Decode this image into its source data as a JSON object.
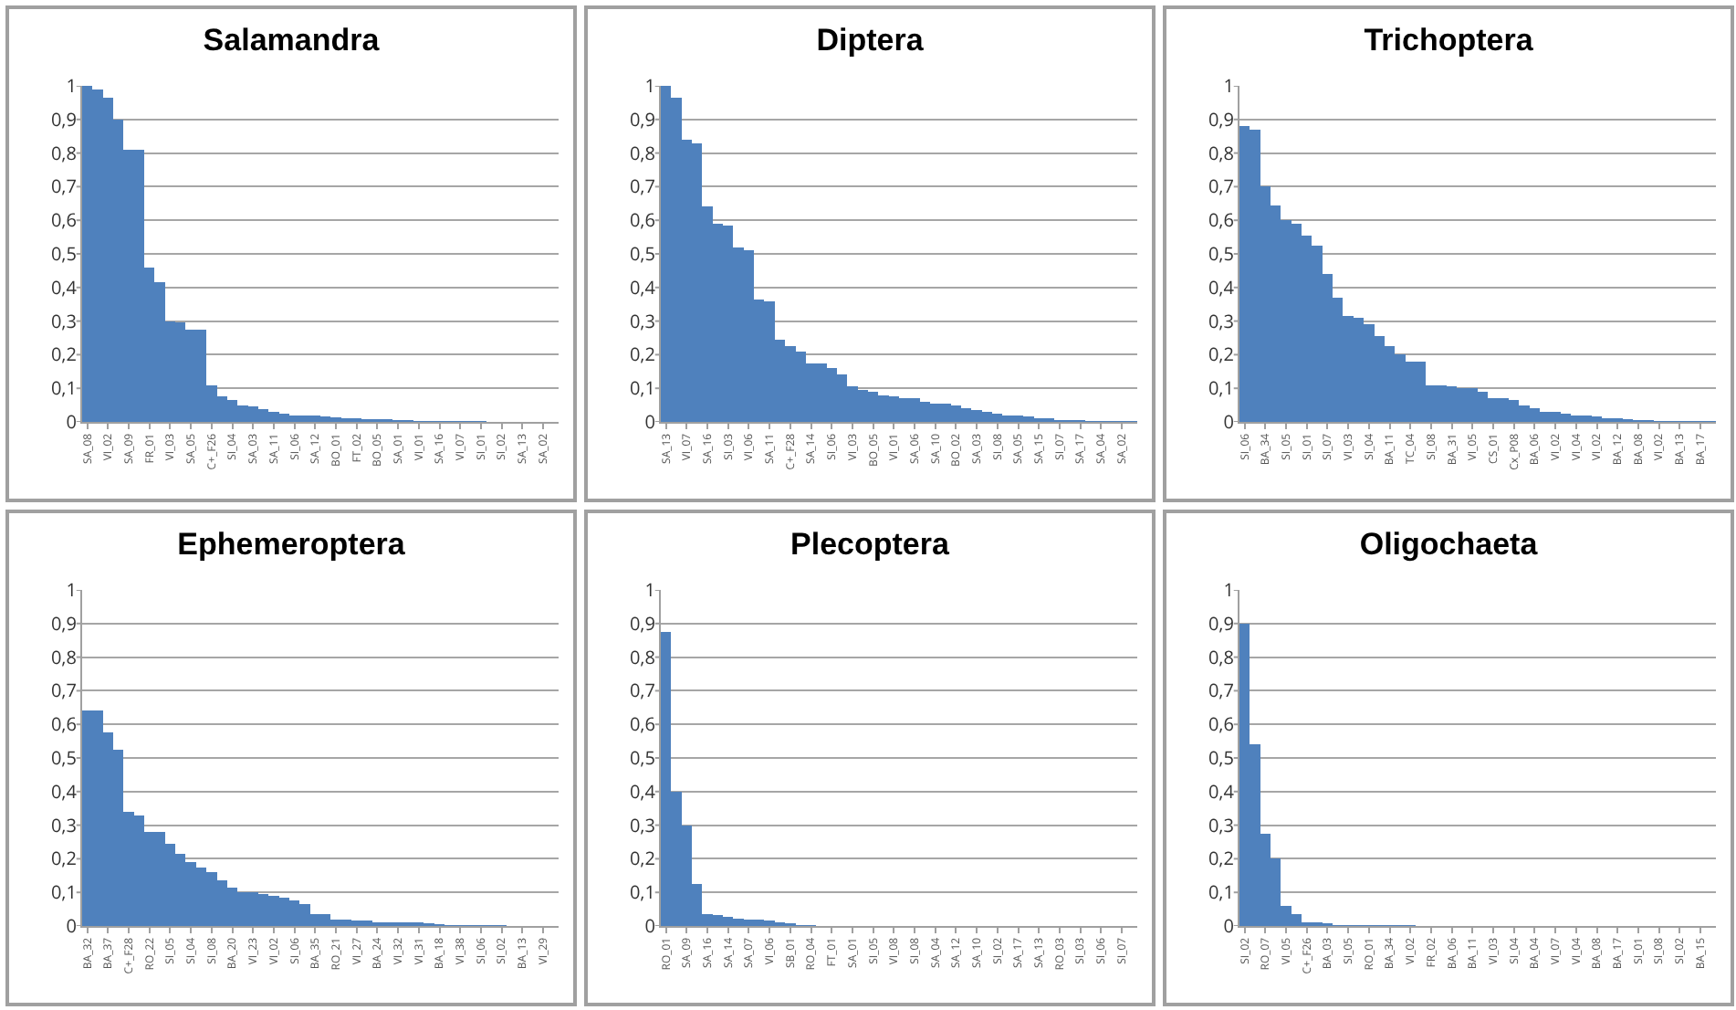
{
  "chart_data": [
    {
      "type": "bar",
      "title": "Salamandra",
      "color": "#4f81bd",
      "grid": "y",
      "ylim": [
        0,
        1
      ],
      "yticks": [
        {
          "value": 0,
          "label": "0"
        },
        {
          "value": 0.1,
          "label": "0,1"
        },
        {
          "value": 0.2,
          "label": "0,2"
        },
        {
          "value": 0.3,
          "label": "0,3"
        },
        {
          "value": 0.4,
          "label": "0,4"
        },
        {
          "value": 0.5,
          "label": "0,5"
        },
        {
          "value": 0.6,
          "label": "0,6"
        },
        {
          "value": 0.7,
          "label": "0,7"
        },
        {
          "value": 0.8,
          "label": "0,8"
        },
        {
          "value": 0.9,
          "label": "0,9"
        },
        {
          "value": 1,
          "label": "1"
        }
      ],
      "categories": [
        "SA_08",
        null,
        "VI_02",
        null,
        "SA_09",
        null,
        "FR_01",
        null,
        "VI_03",
        null,
        "SA_05",
        null,
        "C+_F26",
        null,
        "SI_04",
        null,
        "SA_03",
        null,
        "SA_11",
        null,
        "SI_06",
        null,
        "SA_12",
        null,
        "BO_01",
        null,
        "FT_02",
        null,
        "BO_05",
        null,
        "SA_01",
        null,
        "VI_01",
        null,
        "SA_16",
        null,
        "VI_07",
        null,
        "SI_01",
        null,
        "SI_02",
        null,
        "SA_13",
        null,
        "SA_02",
        null
      ],
      "values": [
        1,
        0.99,
        0.965,
        0.9,
        0.81,
        0.81,
        0.46,
        0.415,
        0.3,
        0.295,
        0.275,
        0.275,
        0.11,
        0.075,
        0.065,
        0.05,
        0.045,
        0.038,
        0.03,
        0.025,
        0.02,
        0.02,
        0.018,
        0.016,
        0.014,
        0.012,
        0.01,
        0.009,
        0.008,
        0.007,
        0.006,
        0.005,
        0.004,
        0.004,
        0.003,
        0.003,
        0.002,
        0.002,
        0.002,
        0.001,
        0.001,
        0.001,
        0.001,
        0.001,
        0.001,
        0.001
      ]
    },
    {
      "type": "bar",
      "title": "Diptera",
      "color": "#4f81bd",
      "grid": "y",
      "ylim": [
        0,
        1
      ],
      "yticks": [
        {
          "value": 0,
          "label": "0"
        },
        {
          "value": 0.1,
          "label": "0,1"
        },
        {
          "value": 0.2,
          "label": "0,2"
        },
        {
          "value": 0.3,
          "label": "0,3"
        },
        {
          "value": 0.4,
          "label": "0,4"
        },
        {
          "value": 0.5,
          "label": "0,5"
        },
        {
          "value": 0.6,
          "label": "0,6"
        },
        {
          "value": 0.7,
          "label": "0,7"
        },
        {
          "value": 0.8,
          "label": "0,8"
        },
        {
          "value": 0.9,
          "label": "0,9"
        },
        {
          "value": 1,
          "label": "1"
        }
      ],
      "categories": [
        "SA_13",
        null,
        "VI_07",
        null,
        "SA_16",
        null,
        "SI_03",
        null,
        "VI_06",
        null,
        "SA_11",
        null,
        "C+_F28",
        null,
        "SA_14",
        null,
        "SI_06",
        null,
        "VI_03",
        null,
        "BO_05",
        null,
        "VI_01",
        null,
        "SA_06",
        null,
        "SA_10",
        null,
        "BO_02",
        null,
        "SA_03",
        null,
        "SI_08",
        null,
        "SA_05",
        null,
        "SA_15",
        null,
        "SI_07",
        null,
        "SA_17",
        null,
        "SA_04",
        null,
        "SA_02",
        null
      ],
      "values": [
        1,
        0.965,
        0.84,
        0.83,
        0.64,
        0.59,
        0.585,
        0.52,
        0.51,
        0.365,
        0.36,
        0.245,
        0.225,
        0.21,
        0.175,
        0.175,
        0.16,
        0.14,
        0.105,
        0.095,
        0.09,
        0.08,
        0.075,
        0.07,
        0.07,
        0.06,
        0.055,
        0.055,
        0.05,
        0.04,
        0.035,
        0.03,
        0.025,
        0.02,
        0.02,
        0.015,
        0.01,
        0.01,
        0.005,
        0.005,
        0.005,
        0.003,
        0.003,
        0.002,
        0.002,
        0.002
      ]
    },
    {
      "type": "bar",
      "title": "Trichoptera",
      "color": "#4f81bd",
      "grid": "y",
      "ylim": [
        0,
        1
      ],
      "yticks": [
        {
          "value": 0,
          "label": "0"
        },
        {
          "value": 0.1,
          "label": "0,1"
        },
        {
          "value": 0.2,
          "label": "0,2"
        },
        {
          "value": 0.3,
          "label": "0,3"
        },
        {
          "value": 0.4,
          "label": "0,4"
        },
        {
          "value": 0.5,
          "label": "0,5"
        },
        {
          "value": 0.6,
          "label": "0,6"
        },
        {
          "value": 0.7,
          "label": "0,7"
        },
        {
          "value": 0.8,
          "label": "0,8"
        },
        {
          "value": 0.9,
          "label": "0,9"
        },
        {
          "value": 1,
          "label": "1"
        }
      ],
      "categories": [
        "SI_06",
        null,
        "BA_34",
        null,
        "SI_05",
        null,
        "SI_01",
        null,
        "SI_07",
        null,
        "VI_03",
        null,
        "SI_04",
        null,
        "BA_11",
        null,
        "TC_04",
        null,
        "SI_08",
        null,
        "BA_31",
        null,
        "VI_05",
        null,
        "CS_01",
        null,
        "Cx_P08",
        null,
        "BA_06",
        null,
        "VI_02",
        null,
        "VI_04",
        null,
        "VI_02",
        null,
        "BA_12",
        null,
        "BA_08",
        null,
        "VI_02",
        null,
        "BA_13",
        null,
        "BA_17",
        null
      ],
      "values": [
        0.88,
        0.87,
        0.7,
        0.645,
        0.6,
        0.59,
        0.555,
        0.525,
        0.44,
        0.37,
        0.315,
        0.31,
        0.29,
        0.255,
        0.225,
        0.2,
        0.18,
        0.18,
        0.11,
        0.11,
        0.105,
        0.1,
        0.1,
        0.09,
        0.07,
        0.07,
        0.065,
        0.05,
        0.04,
        0.03,
        0.03,
        0.025,
        0.02,
        0.02,
        0.015,
        0.01,
        0.01,
        0.008,
        0.006,
        0.005,
        0.004,
        0.004,
        0.003,
        0.003,
        0.002,
        0.002
      ]
    },
    {
      "type": "bar",
      "title": "Ephemeroptera",
      "color": "#4f81bd",
      "grid": "y",
      "ylim": [
        0,
        1
      ],
      "yticks": [
        {
          "value": 0,
          "label": "0"
        },
        {
          "value": 0.1,
          "label": "0,1"
        },
        {
          "value": 0.2,
          "label": "0,2"
        },
        {
          "value": 0.3,
          "label": "0,3"
        },
        {
          "value": 0.4,
          "label": "0,4"
        },
        {
          "value": 0.5,
          "label": "0,5"
        },
        {
          "value": 0.6,
          "label": "0,6"
        },
        {
          "value": 0.7,
          "label": "0,7"
        },
        {
          "value": 0.8,
          "label": "0,8"
        },
        {
          "value": 0.9,
          "label": "0,9"
        },
        {
          "value": 1,
          "label": "1"
        }
      ],
      "categories": [
        "BA_32",
        null,
        "BA_37",
        null,
        "C+_F28",
        null,
        "RO_22",
        null,
        "SI_05",
        null,
        "SI_04",
        null,
        "SI_08",
        null,
        "BA_20",
        null,
        "VI_23",
        null,
        "VI_02",
        null,
        "SI_06",
        null,
        "BA_35",
        null,
        "RO_21",
        null,
        "VI_27",
        null,
        "BA_24",
        null,
        "VI_32",
        null,
        "VI_31",
        null,
        "BA_18",
        null,
        "VI_38",
        null,
        "SI_06",
        null,
        "SI_02",
        null,
        "BA_13",
        null,
        "VI_29",
        null
      ],
      "values": [
        0.64,
        0.64,
        0.575,
        0.525,
        0.34,
        0.33,
        0.28,
        0.28,
        0.245,
        0.215,
        0.19,
        0.175,
        0.16,
        0.135,
        0.115,
        0.1,
        0.1,
        0.095,
        0.09,
        0.085,
        0.075,
        0.065,
        0.035,
        0.035,
        0.02,
        0.02,
        0.015,
        0.015,
        0.01,
        0.01,
        0.01,
        0.01,
        0.01,
        0.008,
        0.005,
        0.004,
        0.003,
        0.003,
        0.002,
        0.002,
        0.002,
        0.001,
        0.001,
        0.001,
        0.001,
        0.001
      ]
    },
    {
      "type": "bar",
      "title": "Plecoptera",
      "color": "#4f81bd",
      "grid": "y",
      "ylim": [
        0,
        1
      ],
      "yticks": [
        {
          "value": 0,
          "label": "0"
        },
        {
          "value": 0.1,
          "label": "0,1"
        },
        {
          "value": 0.2,
          "label": "0,2"
        },
        {
          "value": 0.3,
          "label": "0,3"
        },
        {
          "value": 0.4,
          "label": "0,4"
        },
        {
          "value": 0.5,
          "label": "0,5"
        },
        {
          "value": 0.6,
          "label": "0,6"
        },
        {
          "value": 0.7,
          "label": "0,7"
        },
        {
          "value": 0.8,
          "label": "0,8"
        },
        {
          "value": 0.9,
          "label": "0,9"
        },
        {
          "value": 1,
          "label": "1"
        }
      ],
      "categories": [
        "RO_01",
        null,
        "SA_09",
        null,
        "SA_16",
        null,
        "SA_14",
        null,
        "SA_07",
        null,
        "VI_06",
        null,
        "SB_01",
        null,
        "RO_04",
        null,
        "FT_01",
        null,
        "SA_01",
        null,
        "SI_05",
        null,
        "VI_08",
        null,
        "SI_08",
        null,
        "SA_04",
        null,
        "SA_12",
        null,
        "SA_10",
        null,
        "SI_02",
        null,
        "SA_17",
        null,
        "SA_13",
        null,
        "RO_03",
        null,
        "SI_03",
        null,
        "SI_06",
        null,
        "SI_07",
        null
      ],
      "values": [
        0.875,
        0.4,
        0.3,
        0.125,
        0.035,
        0.033,
        0.028,
        0.022,
        0.02,
        0.018,
        0.016,
        0.012,
        0.008,
        0.003,
        0.002,
        0.001,
        0,
        0,
        0,
        0,
        0,
        0,
        0,
        0,
        0,
        0,
        0,
        0,
        0,
        0,
        0,
        0,
        0,
        0,
        0,
        0,
        0,
        0,
        0,
        0,
        0,
        0,
        0,
        0,
        0,
        0
      ]
    },
    {
      "type": "bar",
      "title": "Oligochaeta",
      "color": "#4f81bd",
      "grid": "y",
      "ylim": [
        0,
        1
      ],
      "yticks": [
        {
          "value": 0,
          "label": "0"
        },
        {
          "value": 0.1,
          "label": "0,1"
        },
        {
          "value": 0.2,
          "label": "0,2"
        },
        {
          "value": 0.3,
          "label": "0,3"
        },
        {
          "value": 0.4,
          "label": "0,4"
        },
        {
          "value": 0.5,
          "label": "0,5"
        },
        {
          "value": 0.6,
          "label": "0,6"
        },
        {
          "value": 0.7,
          "label": "0,7"
        },
        {
          "value": 0.8,
          "label": "0,8"
        },
        {
          "value": 0.9,
          "label": "0,9"
        },
        {
          "value": 1,
          "label": "1"
        }
      ],
      "categories": [
        "SI_02",
        null,
        "RO_07",
        null,
        "VI_05",
        null,
        "C+_F26",
        null,
        "BA_03",
        null,
        "SI_05",
        null,
        "RO_01",
        null,
        "BA_34",
        null,
        "VI_02",
        null,
        "FR_02",
        null,
        "BA_06",
        null,
        "BA_11",
        null,
        "VI_03",
        null,
        "SI_04",
        null,
        "BA_04",
        null,
        "VI_07",
        null,
        "VI_04",
        null,
        "BA_08",
        null,
        "BA_17",
        null,
        "SI_01",
        null,
        "SI_08",
        null,
        "SI_02",
        null,
        "BA_15",
        null
      ],
      "values": [
        0.9,
        0.54,
        0.275,
        0.2,
        0.06,
        0.035,
        0.012,
        0.012,
        0.008,
        0.004,
        0.003,
        0.002,
        0.002,
        0.002,
        0.002,
        0.002,
        0.002,
        0.001,
        0.001,
        0.001,
        0.001,
        0.001,
        0.001,
        0.001,
        0,
        0,
        0,
        0,
        0,
        0,
        0,
        0,
        0,
        0,
        0,
        0,
        0,
        0,
        0,
        0,
        0,
        0,
        0,
        0,
        0,
        0
      ]
    }
  ]
}
